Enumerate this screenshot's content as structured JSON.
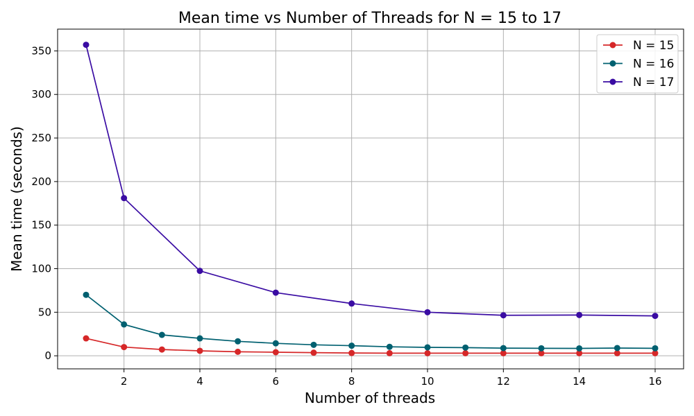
{
  "chart_data": {
    "type": "line",
    "title": "Mean time vs Number of Threads for N = 15 to 17",
    "xlabel": "Number of threads",
    "ylabel": "Mean time (seconds)",
    "xlim": [
      0.25,
      16.75
    ],
    "ylim": [
      -15,
      375
    ],
    "xticks": [
      2,
      4,
      6,
      8,
      10,
      12,
      14,
      16
    ],
    "yticks": [
      0,
      50,
      100,
      150,
      200,
      250,
      300,
      350
    ],
    "grid": true,
    "legend_position": "top-right",
    "series": [
      {
        "name": "N = 15",
        "color": "#d62728",
        "x": [
          1,
          2,
          3,
          4,
          5,
          6,
          7,
          8,
          9,
          10,
          11,
          12,
          13,
          14,
          15,
          16
        ],
        "values": [
          20.0,
          10.0,
          7.2,
          5.7,
          4.6,
          4.1,
          3.6,
          3.2,
          3.0,
          3.0,
          3.0,
          3.0,
          3.0,
          3.0,
          3.0,
          3.0
        ]
      },
      {
        "name": "N = 16",
        "color": "#006070",
        "x": [
          1,
          2,
          3,
          4,
          5,
          6,
          7,
          8,
          9,
          10,
          11,
          12,
          13,
          14,
          15,
          16
        ],
        "values": [
          70.0,
          36.0,
          24.0,
          20.0,
          16.6,
          14.3,
          12.6,
          11.6,
          10.3,
          9.7,
          9.4,
          8.8,
          8.6,
          8.5,
          8.9,
          8.6
        ]
      },
      {
        "name": "N = 17",
        "color": "#3a0ca3",
        "x": [
          1,
          2,
          4,
          6,
          8,
          10,
          12,
          14,
          16
        ],
        "values": [
          357.0,
          181.0,
          97.5,
          72.5,
          60.0,
          50.0,
          46.5,
          46.8,
          45.8
        ]
      }
    ]
  }
}
